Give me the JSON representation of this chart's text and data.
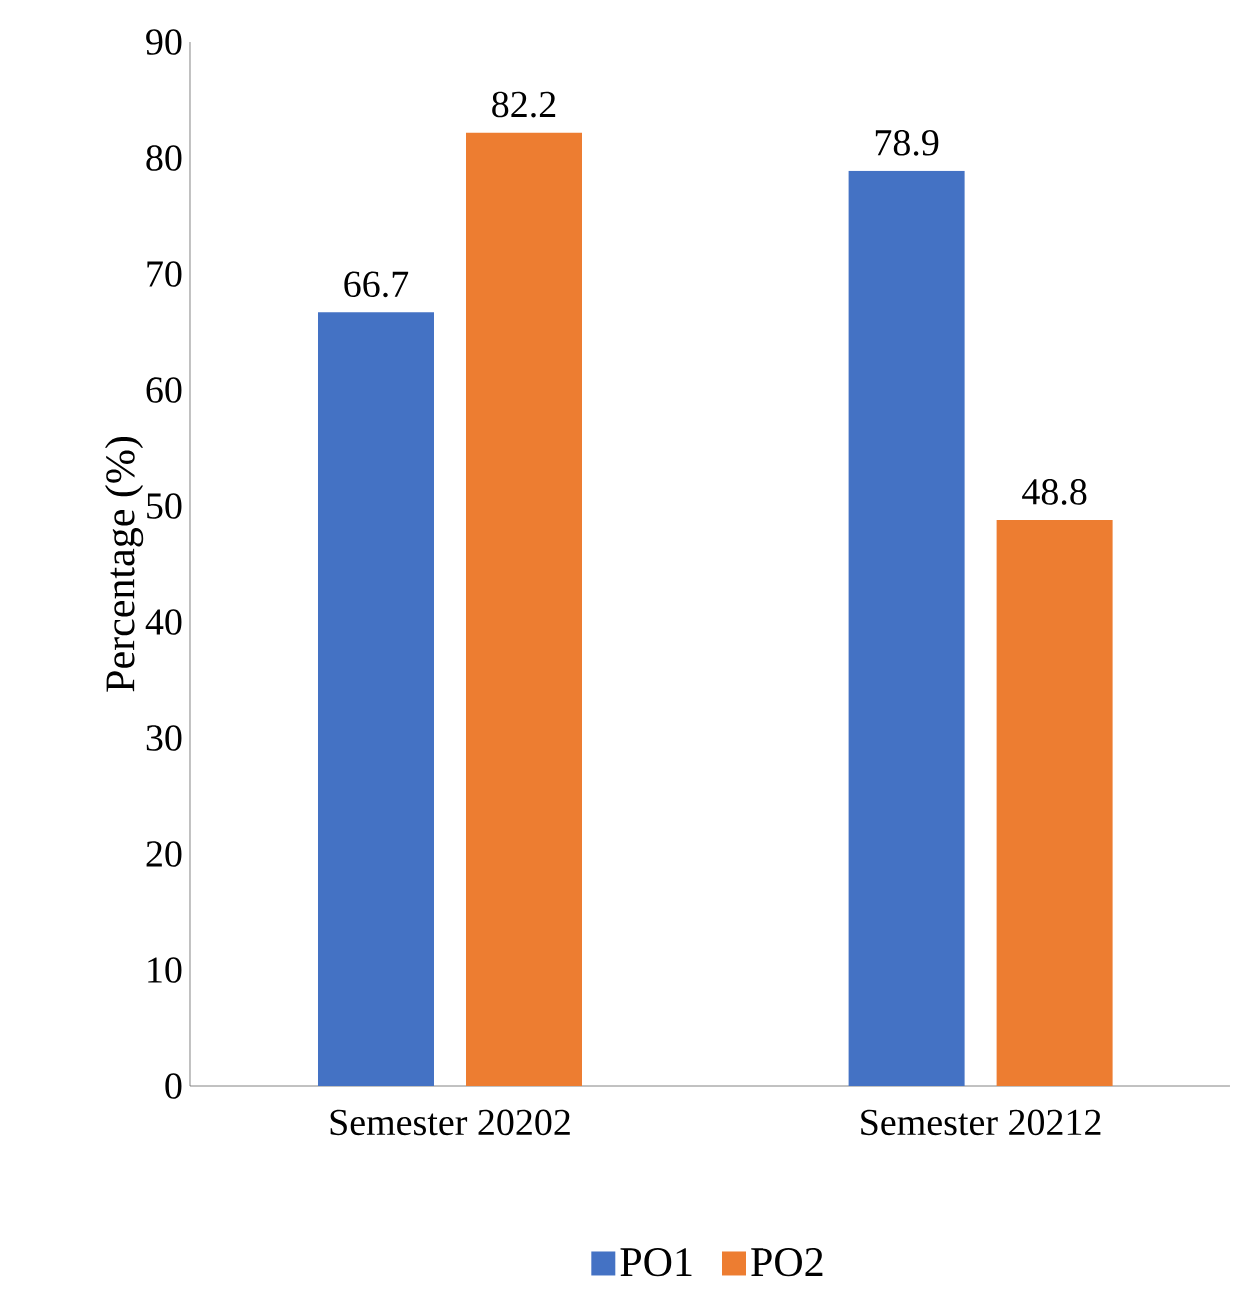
{
  "chart_data": {
    "type": "bar",
    "ylabel": "Percentage (%)",
    "categories": [
      "Semester 20202",
      "Semester 20212"
    ],
    "series": [
      {
        "name": "PO1",
        "color": "#4472c4",
        "values": [
          66.7,
          78.9
        ]
      },
      {
        "name": "PO2",
        "color": "#ed7d31",
        "values": [
          82.2,
          48.8
        ]
      }
    ],
    "ylim": [
      0,
      90
    ],
    "yticks": [
      0,
      10,
      20,
      30,
      40,
      50,
      60,
      70,
      80,
      90
    ],
    "data_labels": true,
    "legend": "bottom",
    "grid": false
  }
}
